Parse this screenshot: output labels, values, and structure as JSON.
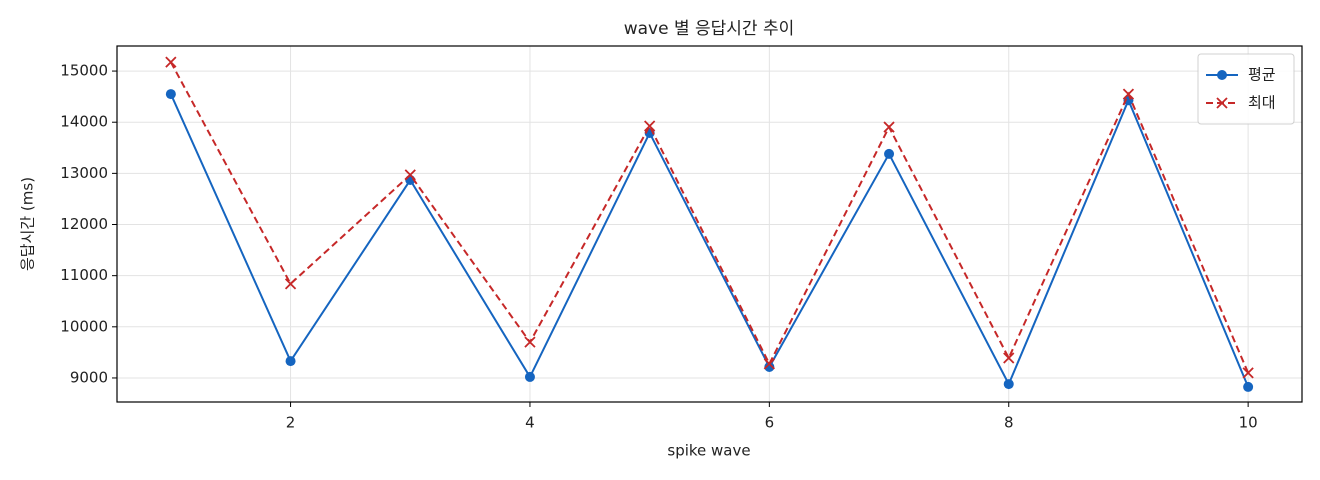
{
  "chart_data": {
    "type": "line",
    "title": "wave 별 응답시간 추이",
    "xlabel": "spike wave",
    "ylabel": "응답시간 (ms)",
    "x": [
      1,
      2,
      3,
      4,
      5,
      6,
      7,
      8,
      9,
      10
    ],
    "series": [
      {
        "name": "평균",
        "color": "#1565c0",
        "marker": "circle",
        "dash": "solid",
        "values": [
          14550,
          9330,
          12870,
          9020,
          13790,
          9215,
          13380,
          8880,
          14430,
          8825
        ]
      },
      {
        "name": "최대",
        "color": "#c62828",
        "marker": "cross",
        "dash": "dashed",
        "values": [
          15175,
          10840,
          12970,
          9700,
          13925,
          9275,
          13905,
          9390,
          14550,
          9100
        ]
      }
    ],
    "xlim": [
      0.55,
      10.45
    ],
    "ylim": [
      8530,
      15490
    ],
    "xticks": [
      2,
      4,
      6,
      8,
      10
    ],
    "yticks": [
      9000,
      10000,
      11000,
      12000,
      13000,
      14000,
      15000
    ],
    "grid": true,
    "legend": "upper right"
  }
}
